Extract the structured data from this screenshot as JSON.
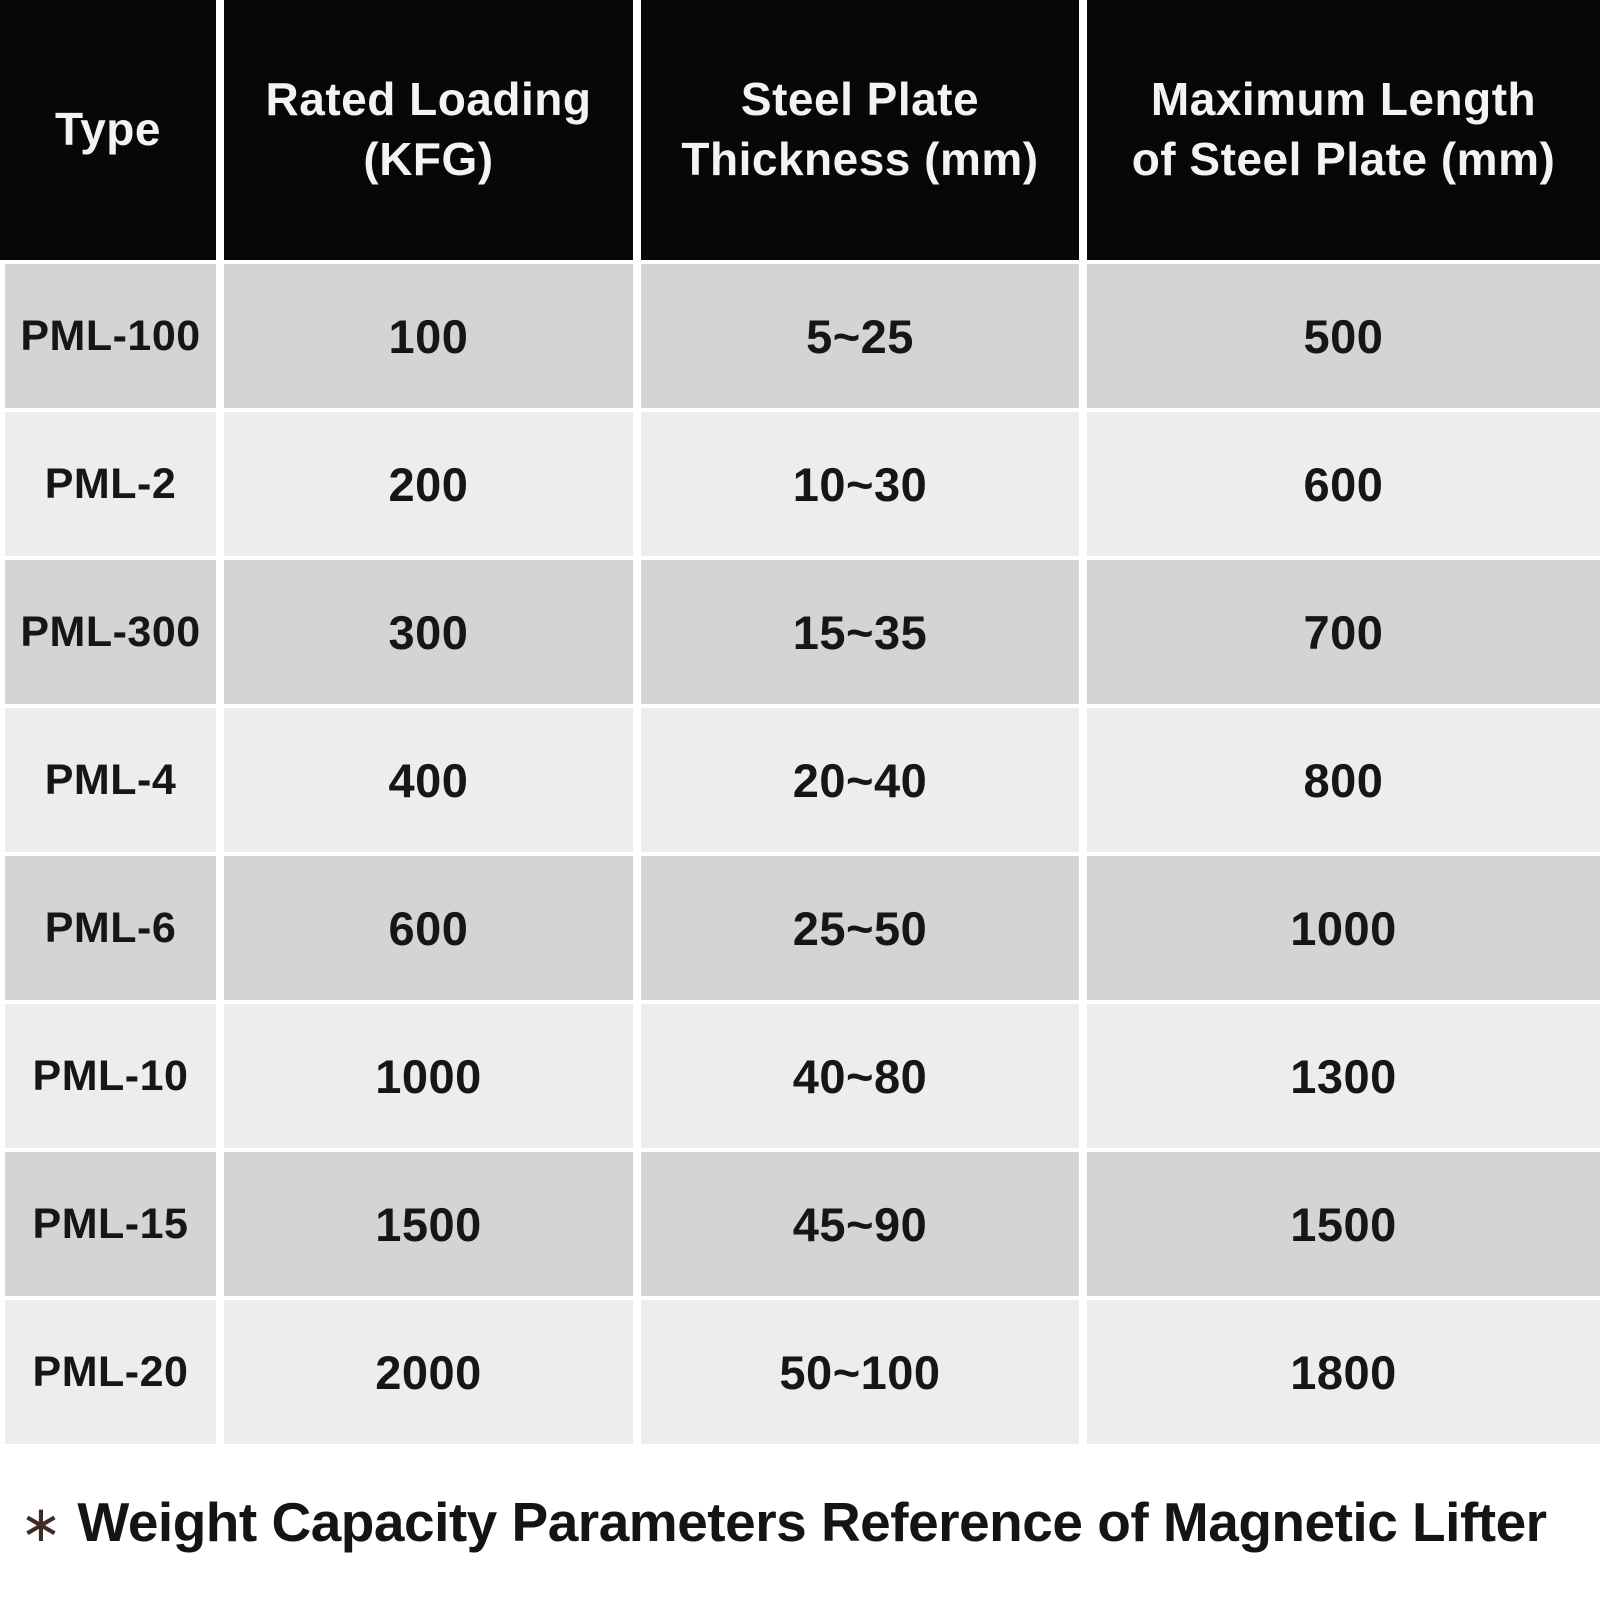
{
  "colors": {
    "header_bg": "#070707",
    "header_text": "#f3f3f3",
    "row_dark": "#d4d4d4",
    "row_light": "#ededed",
    "cell_text": "#161616",
    "page_bg": "#ffffff",
    "footnote_marker_color": "#3e2b26",
    "footnote_text_color": "#141414"
  },
  "header": {
    "col1_line1": "Type",
    "col1_line2": "",
    "col2_line1": "Rated Loading",
    "col2_line2": "(KFG)",
    "col3_line1": "Steel Plate",
    "col3_line2": "Thickness (mm)",
    "col4_line1": "Maximum Length",
    "col4_line2": "of Steel Plate (mm)"
  },
  "rows": [
    {
      "type": "PML-100",
      "loading": "100",
      "thickness": "5~25",
      "length": "500"
    },
    {
      "type": "PML-2",
      "loading": "200",
      "thickness": "10~30",
      "length": "600"
    },
    {
      "type": "PML-300",
      "loading": "300",
      "thickness": "15~35",
      "length": "700"
    },
    {
      "type": "PML-4",
      "loading": "400",
      "thickness": "20~40",
      "length": "800"
    },
    {
      "type": "PML-6",
      "loading": "600",
      "thickness": "25~50",
      "length": "1000"
    },
    {
      "type": "PML-10",
      "loading": "1000",
      "thickness": "40~80",
      "length": "1300"
    },
    {
      "type": "PML-15",
      "loading": "1500",
      "thickness": "45~90",
      "length": "1500"
    },
    {
      "type": "PML-20",
      "loading": "2000",
      "thickness": "50~100",
      "length": "1800"
    }
  ],
  "footnote": {
    "marker": "∗",
    "text": "Weight Capacity Parameters Reference of Magnetic Lifter"
  },
  "chart_data": {
    "type": "table",
    "title": "Weight Capacity Parameters Reference of Magnetic Lifter",
    "columns": [
      "Type",
      "Rated Loading (KFG)",
      "Steel Plate Thickness (mm)",
      "Maximum Length of Steel Plate (mm)"
    ],
    "rows": [
      [
        "PML-100",
        100,
        "5~25",
        500
      ],
      [
        "PML-2",
        200,
        "10~30",
        600
      ],
      [
        "PML-300",
        300,
        "15~35",
        700
      ],
      [
        "PML-4",
        400,
        "20~40",
        800
      ],
      [
        "PML-6",
        600,
        "25~50",
        1000
      ],
      [
        "PML-10",
        1000,
        "40~80",
        1300
      ],
      [
        "PML-15",
        1500,
        "45~90",
        1500
      ],
      [
        "PML-20",
        2000,
        "50~100",
        1800
      ]
    ],
    "layout": {
      "header_style": "black-background-white-text",
      "body_style": "alternating-gray-rows",
      "grid": "white-separator-lines"
    }
  }
}
